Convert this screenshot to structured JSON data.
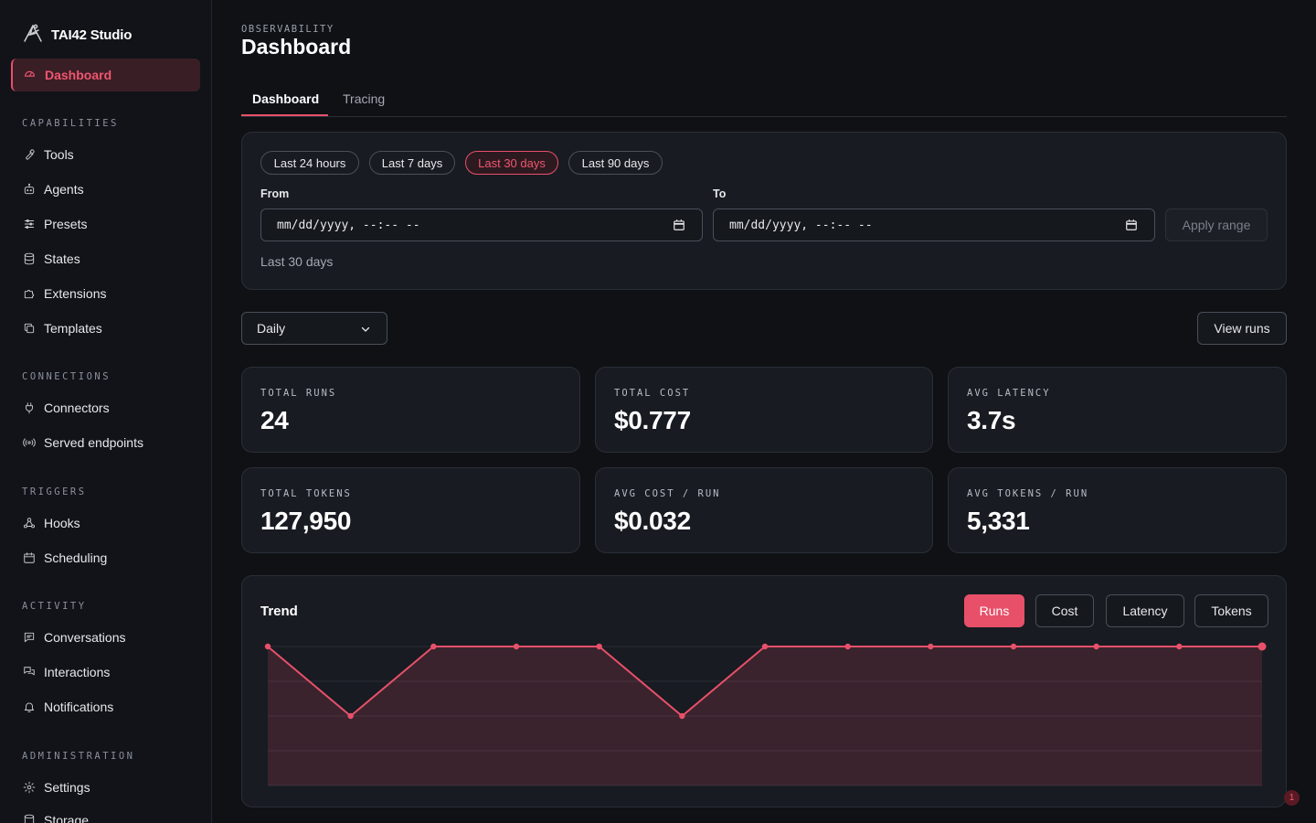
{
  "app": {
    "name": "TAI42 Studio"
  },
  "sidebar": {
    "active": {
      "label": "Dashboard",
      "icon": "gauge-icon"
    },
    "sections": [
      {
        "title": "CAPABILITIES",
        "items": [
          {
            "label": "Tools",
            "icon": "wrench-icon"
          },
          {
            "label": "Agents",
            "icon": "bot-icon"
          },
          {
            "label": "Presets",
            "icon": "sliders-icon"
          },
          {
            "label": "States",
            "icon": "database-icon"
          },
          {
            "label": "Extensions",
            "icon": "puzzle-icon"
          },
          {
            "label": "Templates",
            "icon": "copy-icon"
          }
        ]
      },
      {
        "title": "CONNECTIONS",
        "items": [
          {
            "label": "Connectors",
            "icon": "plug-icon"
          },
          {
            "label": "Served endpoints",
            "icon": "broadcast-icon"
          }
        ]
      },
      {
        "title": "TRIGGERS",
        "items": [
          {
            "label": "Hooks",
            "icon": "webhook-icon"
          },
          {
            "label": "Scheduling",
            "icon": "calendar-icon"
          }
        ]
      },
      {
        "title": "ACTIVITY",
        "items": [
          {
            "label": "Conversations",
            "icon": "message-icon"
          },
          {
            "label": "Interactions",
            "icon": "messages-icon"
          },
          {
            "label": "Notifications",
            "icon": "bell-icon"
          }
        ]
      },
      {
        "title": "ADMINISTRATION",
        "items": [
          {
            "label": "Settings",
            "icon": "gear-icon"
          },
          {
            "label": "Storage",
            "icon": "database-icon"
          }
        ]
      }
    ]
  },
  "header": {
    "eyebrow": "OBSERVABILITY",
    "title": "Dashboard"
  },
  "tabs": [
    {
      "label": "Dashboard",
      "active": true
    },
    {
      "label": "Tracing",
      "active": false
    }
  ],
  "range": {
    "presets": [
      {
        "label": "Last 24 hours",
        "active": false
      },
      {
        "label": "Last 7 days",
        "active": false
      },
      {
        "label": "Last 30 days",
        "active": true
      },
      {
        "label": "Last 90 days",
        "active": false
      }
    ],
    "from_label": "From",
    "to_label": "To",
    "from_value": "mm/dd/yyyy, --:-- --",
    "to_value": "mm/dd/yyyy, --:-- --",
    "apply_label": "Apply range",
    "note": "Last 30 days"
  },
  "granularity": {
    "selected": "Daily"
  },
  "view_runs_label": "View runs",
  "stats": [
    {
      "label": "TOTAL RUNS",
      "value": "24"
    },
    {
      "label": "TOTAL COST",
      "value": "$0.777"
    },
    {
      "label": "AVG LATENCY",
      "value": "3.7s"
    },
    {
      "label": "TOTAL TOKENS",
      "value": "127,950"
    },
    {
      "label": "AVG COST / RUN",
      "value": "$0.032"
    },
    {
      "label": "AVG TOKENS / RUN",
      "value": "5,331"
    }
  ],
  "trend": {
    "title": "Trend",
    "metrics": [
      {
        "label": "Runs",
        "active": true
      },
      {
        "label": "Cost",
        "active": false
      },
      {
        "label": "Latency",
        "active": false
      },
      {
        "label": "Tokens",
        "active": false
      }
    ]
  },
  "notification_badge": "1",
  "colors": {
    "accent": "#e8506a",
    "background": "#0f1115",
    "card": "#181b21"
  },
  "chart_data": {
    "type": "area",
    "x": [
      1,
      2,
      3,
      4,
      5,
      6,
      7,
      8,
      9,
      10,
      11,
      12,
      13
    ],
    "series": [
      {
        "values": [
          2,
          1,
          2,
          2,
          2,
          1,
          2,
          2,
          2,
          2,
          2,
          2,
          2
        ]
      }
    ],
    "ylim": [
      0,
      2
    ],
    "grid": true
  }
}
